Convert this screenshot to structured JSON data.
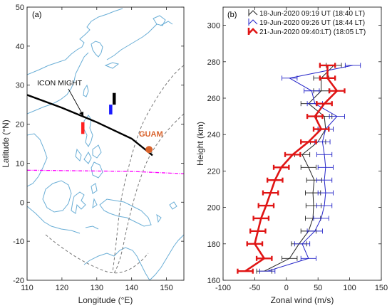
{
  "chart_data": [
    {
      "type": "map",
      "panel_label": "(a)",
      "xlabel": "Longitude (°E)",
      "ylabel": "Latitude (°N)",
      "xlim": [
        110,
        155
      ],
      "ylim": [
        -20,
        50
      ],
      "xticks": [
        110,
        120,
        130,
        140,
        150
      ],
      "yticks": [
        -20,
        -10,
        0,
        10,
        20,
        30,
        40,
        50
      ],
      "annotations": {
        "icon": "ICON MIGHT",
        "guam": "GUAM"
      },
      "guam_location": [
        145,
        13.5
      ],
      "icon_track": [
        [
          110,
          27.5
        ],
        [
          120,
          24.2
        ],
        [
          130,
          20.5
        ],
        [
          140,
          16.3
        ],
        [
          146,
          12
        ]
      ],
      "magnetic_equator": [
        [
          110,
          8.2
        ],
        [
          120,
          8.1
        ],
        [
          130,
          8
        ],
        [
          140,
          7.9
        ],
        [
          155,
          7.3
        ]
      ],
      "observation_segments": [
        {
          "color": "#000000",
          "lon": 135,
          "lat": [
            25,
            28
          ]
        },
        {
          "color": "#1a1aff",
          "lon": 134,
          "lat": [
            22.5,
            25
          ]
        },
        {
          "color": "#ff2020",
          "lon": 126,
          "lat": [
            17.5,
            20.5
          ]
        }
      ],
      "colors": {
        "track": "#000000",
        "guam": "#d9622b",
        "equator": "#ff00ff",
        "coast": "#6aaed6",
        "fov": "#777777"
      }
    },
    {
      "type": "line",
      "panel_label": "(b)",
      "xlabel": "Zonal wind (m/s)",
      "ylabel": "Height (km)",
      "xlim": [
        -100,
        150
      ],
      "ylim": [
        160,
        310
      ],
      "xticks": [
        -100,
        -50,
        0,
        50,
        100,
        150
      ],
      "yticks": [
        160,
        180,
        200,
        220,
        240,
        260,
        280,
        300
      ],
      "heights": [
        165,
        172,
        180,
        187,
        194,
        201,
        208,
        215,
        222,
        229,
        236,
        243,
        250,
        257,
        264,
        271,
        278
      ],
      "series": [
        {
          "name": "18-Jun-2020 09:19 UT (18:40 LT)",
          "color": "#222222",
          "values": [
            -35,
            5,
            20,
            35,
            42,
            43,
            42,
            44,
            35,
            25,
            50,
            62,
            60,
            35,
            55,
            55,
            75
          ]
        },
        {
          "name": "19-Jun-2020 09:26 UT (18:44 LT)",
          "color": "#2424c8",
          "values": [
            -30,
            35,
            25,
            45,
            55,
            60,
            62,
            60,
            62,
            60,
            57,
            62,
            80,
            45,
            40,
            5,
            105
          ]
        },
        {
          "name": "21-Jun-2020 09:40:LT) (18:05 LT)",
          "color": "#e01515",
          "values": [
            -65,
            -35,
            -50,
            -45,
            -40,
            -32,
            -25,
            -18,
            -8,
            10,
            35,
            55,
            45,
            60,
            80,
            65,
            65
          ]
        }
      ],
      "error": 12
    }
  ]
}
